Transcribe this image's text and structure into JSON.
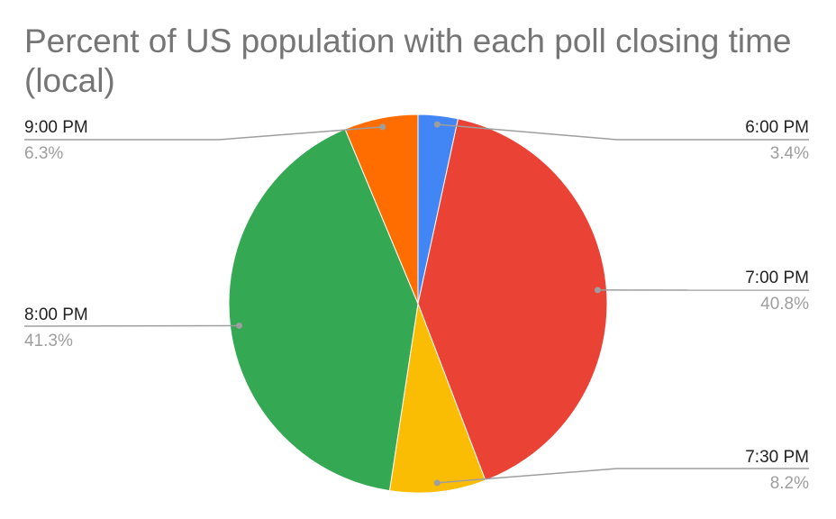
{
  "chart_data": {
    "type": "pie",
    "title": "Percent of US population with each poll closing time (local)",
    "legend": "labels-outside",
    "slices": [
      {
        "label": "6:00 PM",
        "value": 3.4,
        "display": "3.4%",
        "color": "#4285f4"
      },
      {
        "label": "7:00 PM",
        "value": 40.8,
        "display": "40.8%",
        "color": "#ea4335"
      },
      {
        "label": "7:30 PM",
        "value": 8.2,
        "display": "8.2%",
        "color": "#fbbc04"
      },
      {
        "label": "8:00 PM",
        "value": 41.3,
        "display": "41.3%",
        "color": "#34a853"
      },
      {
        "label": "9:00 PM",
        "value": 6.3,
        "display": "6.3%",
        "color": "#ff6d01"
      }
    ]
  }
}
